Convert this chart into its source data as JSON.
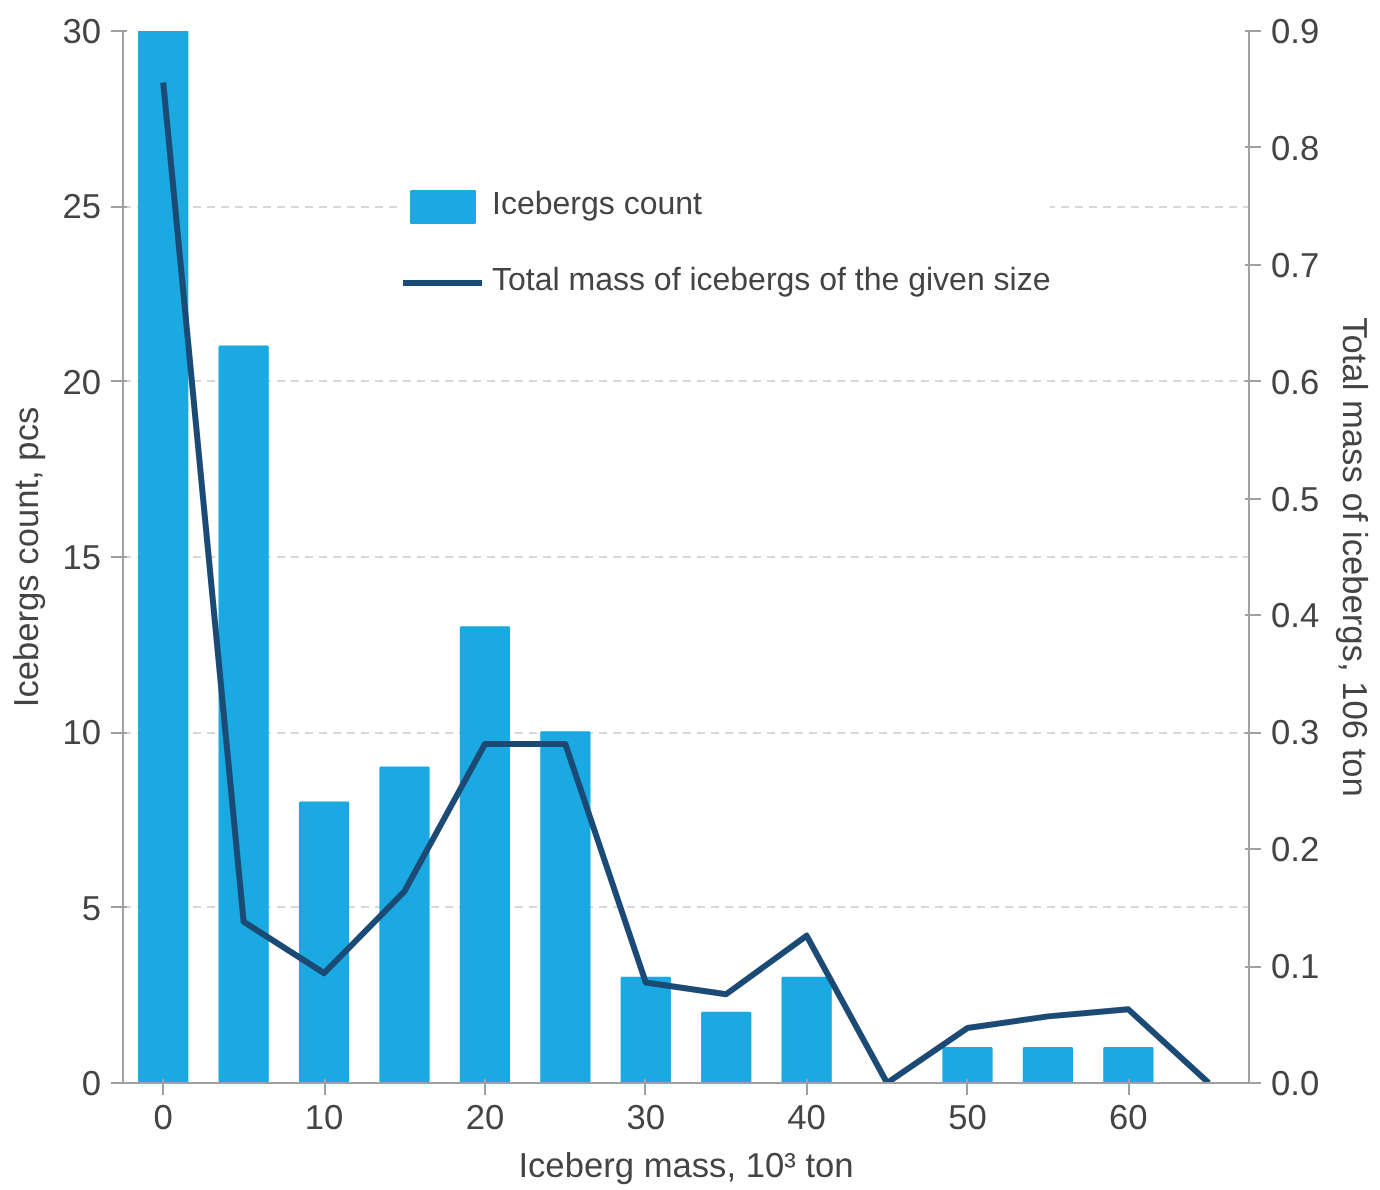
{
  "chart_data": {
    "type": "bar",
    "xlabel": "Iceberg mass, 10³ ton",
    "ylabel": "Icebergs count, pcs",
    "y2label": "Total mass of icebergs, 106 ton",
    "x": [
      0,
      5,
      10,
      15,
      20,
      25,
      30,
      35,
      40,
      45,
      50,
      55,
      60
    ],
    "series": [
      {
        "name": "Icebergs count",
        "color": "#1aa9e0",
        "values": [
          30,
          21,
          8,
          9,
          13,
          10,
          3,
          2,
          3,
          0,
          1,
          1,
          1
        ]
      },
      {
        "name": "Total mass of icebergs of the given size",
        "type": "line",
        "axis": "y2",
        "color": "#1b4a75",
        "x": [
          0,
          5,
          10,
          15,
          20,
          25,
          30,
          35,
          40,
          45,
          50,
          55,
          60,
          65
        ],
        "values": [
          0.856,
          0.138,
          0.094,
          0.164,
          0.29,
          0.29,
          0.086,
          0.076,
          0.126,
          0.0,
          0.047,
          0.057,
          0.063,
          0.0
        ]
      }
    ],
    "xlim": [
      -2.5,
      67.5
    ],
    "xticks": [
      0,
      10,
      20,
      30,
      40,
      50,
      60
    ],
    "ylim": [
      0,
      30
    ],
    "yticks": [
      0,
      5,
      10,
      15,
      20,
      25,
      30
    ],
    "y2lim": [
      0,
      0.9
    ],
    "y2ticks": [
      {
        "value": 0,
        "label": "0.0"
      },
      0.1,
      0.2,
      0.3,
      0.4,
      0.5,
      0.6,
      0.7,
      0.8,
      0.9
    ],
    "grid": "y",
    "legend": "top",
    "line_style": "solid",
    "marker": "none"
  }
}
